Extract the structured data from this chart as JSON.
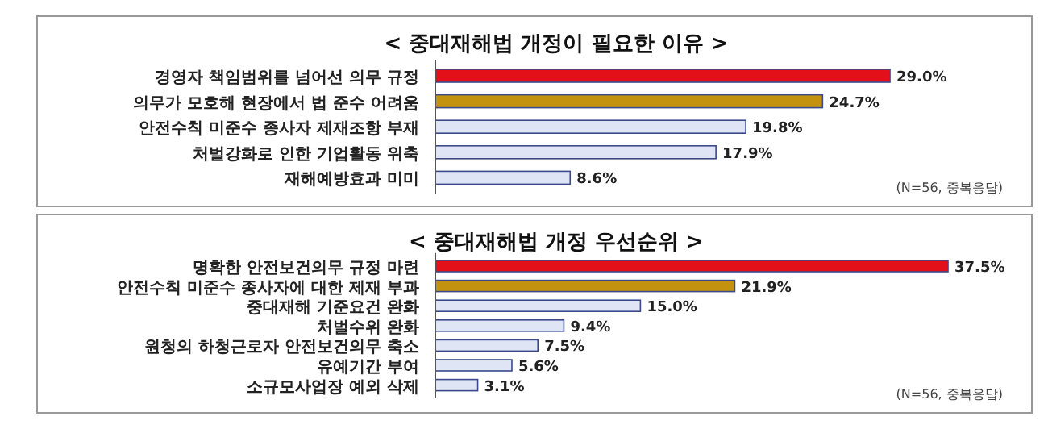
{
  "chart_data": [
    {
      "type": "bar",
      "orientation": "horizontal",
      "title": "< 중대재해법 개정이 필요한 이유 >",
      "categories": [
        "경영자 책임범위를 넘어선 의무 규정",
        "의무가 모호해 현장에서 법 준수 어려움",
        "안전수칙 미준수 종사자 제재조항 부재",
        "처벌강화로 인한 기업활동 위축",
        "재해예방효과 미미"
      ],
      "values": [
        29.0,
        24.7,
        19.8,
        17.9,
        8.6
      ],
      "value_labels": [
        "29.0%",
        "24.7%",
        "19.8%",
        "17.9%",
        "8.6%"
      ],
      "colors": [
        "#e3101a",
        "#c3920e",
        "#dfe5f5",
        "#dfe5f5",
        "#dfe5f5"
      ],
      "annotations": [
        "(N=56, 중복응답)"
      ]
    },
    {
      "type": "bar",
      "orientation": "horizontal",
      "title": "< 중대재해법 개정 우선순위 >",
      "categories": [
        "명확한 안전보건의무 규정 마련",
        "안전수칙 미준수 종사자에 대한 제재 부과",
        "중대재해 기준요건 완화",
        "처벌수위 완화",
        "원청의 하청근로자 안전보건의무 축소",
        "유예기간 부여",
        "소규모사업장 예외 삭제"
      ],
      "values": [
        37.5,
        21.9,
        15.0,
        9.4,
        7.5,
        5.6,
        3.1
      ],
      "value_labels": [
        "37.5%",
        "21.9%",
        "15.0%",
        "9.4%",
        "7.5%",
        "5.6%",
        "3.1%"
      ],
      "colors": [
        "#e3101a",
        "#c3920e",
        "#dfe5f5",
        "#dfe5f5",
        "#dfe5f5",
        "#dfe5f5",
        "#dfe5f5"
      ],
      "annotations": [
        "(N=56, 중복응답)"
      ]
    }
  ]
}
